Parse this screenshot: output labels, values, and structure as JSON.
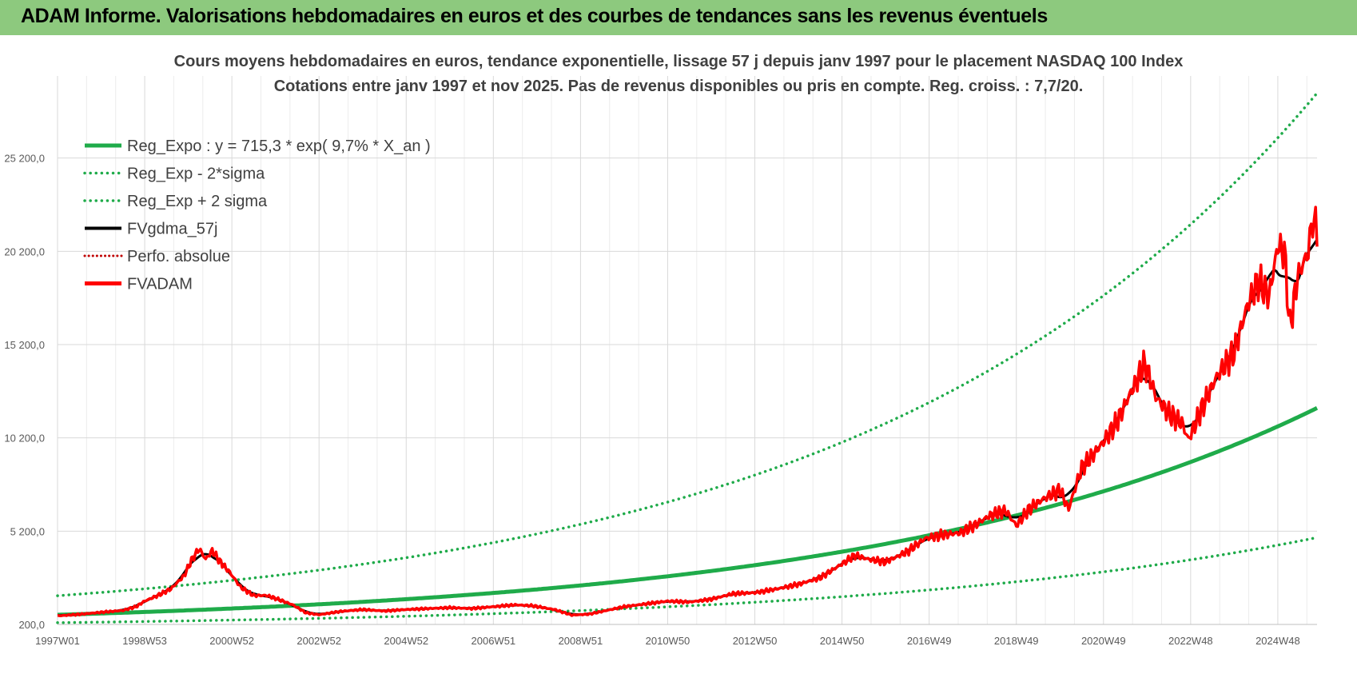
{
  "header": {
    "title": "ADAM Informe. Valorisations hebdomadaires en euros et des courbes de tendances sans les revenus éventuels",
    "background": "#8dc97e"
  },
  "chart_data": {
    "type": "line",
    "title_lines": [
      "Cours moyens hebdomadaires en euros, tendance exponentielle, lissage 57 j depuis janv 1997  pour le placement NASDAQ 100 Index",
      "Cotations entre janv 1997 et nov 2025. Pas de revenus disponibles ou pris en compte. Reg. croiss. : 7,7/20."
    ],
    "x_range": [
      1997.0,
      2025.9
    ],
    "x_ticks": [
      {
        "label": "1997W01",
        "year": 1997.0
      },
      {
        "label": "1998W53",
        "year": 1999.0
      },
      {
        "label": "2000W52",
        "year": 2001.0
      },
      {
        "label": "2002W52",
        "year": 2003.0
      },
      {
        "label": "2004W52",
        "year": 2005.0
      },
      {
        "label": "2006W51",
        "year": 2007.0
      },
      {
        "label": "2008W51",
        "year": 2009.0
      },
      {
        "label": "2010W50",
        "year": 2011.0
      },
      {
        "label": "2012W50",
        "year": 2013.0
      },
      {
        "label": "2014W50",
        "year": 2015.0
      },
      {
        "label": "2016W49",
        "year": 2017.0
      },
      {
        "label": "2018W49",
        "year": 2019.0
      },
      {
        "label": "2020W49",
        "year": 2021.0
      },
      {
        "label": "2022W48",
        "year": 2023.0
      },
      {
        "label": "2024W48",
        "year": 2025.0
      }
    ],
    "y_range": [
      200,
      29600
    ],
    "y_ticks": [
      {
        "label": "200,0",
        "value": 200
      },
      {
        "label": "5 200,0",
        "value": 5200
      },
      {
        "label": "10 200,0",
        "value": 10200
      },
      {
        "label": "15 200,0",
        "value": 15200
      },
      {
        "label": "20 200,0",
        "value": 20200
      },
      {
        "label": "25 200,0",
        "value": 25200
      }
    ],
    "grid": true,
    "legend_position": "top-left",
    "regression": {
      "a": 715.3,
      "rate": 0.097,
      "start_year": 1997.0,
      "end_year": 2025.9,
      "sigma_factor": 2.43,
      "clip_max": 29600
    },
    "series": [
      {
        "name": "Reg_Expo : y = 715,3 * exp( 9,7% *  X_an )",
        "color": "#1fab4a",
        "style": "solid-thick"
      },
      {
        "name": "Reg_Exp - 2*sigma",
        "color": "#1fab4a",
        "style": "dotted"
      },
      {
        "name": "Reg_Exp + 2 sigma",
        "color": "#1fab4a",
        "style": "dotted"
      },
      {
        "name": "FVgdma_57j",
        "color": "#000000",
        "style": "solid"
      },
      {
        "name": "Perfo. absolue",
        "color": "#c00000",
        "style": "dotted"
      },
      {
        "name": "FVADAM",
        "color": "#ff0000",
        "style": "solid-thick",
        "points": [
          [
            1997.0,
            660
          ],
          [
            1997.5,
            740
          ],
          [
            1998.0,
            850
          ],
          [
            1998.5,
            950
          ],
          [
            1998.8,
            1150
          ],
          [
            1999.0,
            1450
          ],
          [
            1999.3,
            1750
          ],
          [
            1999.6,
            2100
          ],
          [
            1999.9,
            2800
          ],
          [
            2000.1,
            3750
          ],
          [
            2000.25,
            4250
          ],
          [
            2000.4,
            3700
          ],
          [
            2000.55,
            4150
          ],
          [
            2000.75,
            3500
          ],
          [
            2000.95,
            3000
          ],
          [
            2001.2,
            2200
          ],
          [
            2001.5,
            1750
          ],
          [
            2001.8,
            1750
          ],
          [
            2002.0,
            1600
          ],
          [
            2002.4,
            1250
          ],
          [
            2002.7,
            820
          ],
          [
            2003.0,
            720
          ],
          [
            2003.5,
            900
          ],
          [
            2004.0,
            1000
          ],
          [
            2004.5,
            920
          ],
          [
            2005.0,
            1000
          ],
          [
            2005.5,
            1050
          ],
          [
            2006.0,
            1100
          ],
          [
            2006.5,
            1050
          ],
          [
            2007.0,
            1150
          ],
          [
            2007.5,
            1250
          ],
          [
            2007.9,
            1200
          ],
          [
            2008.4,
            1000
          ],
          [
            2008.8,
            700
          ],
          [
            2009.2,
            750
          ],
          [
            2009.6,
            950
          ],
          [
            2010.0,
            1150
          ],
          [
            2010.5,
            1300
          ],
          [
            2011.0,
            1450
          ],
          [
            2011.5,
            1400
          ],
          [
            2012.0,
            1550
          ],
          [
            2012.5,
            1850
          ],
          [
            2013.0,
            1900
          ],
          [
            2013.5,
            2100
          ],
          [
            2014.0,
            2350
          ],
          [
            2014.5,
            2700
          ],
          [
            2014.9,
            3300
          ],
          [
            2015.3,
            3900
          ],
          [
            2015.6,
            3700
          ],
          [
            2016.0,
            3550
          ],
          [
            2016.5,
            4100
          ],
          [
            2016.9,
            4800
          ],
          [
            2017.3,
            5000
          ],
          [
            2017.7,
            5100
          ],
          [
            2018.0,
            5450
          ],
          [
            2018.4,
            6050
          ],
          [
            2018.75,
            6300
          ],
          [
            2019.0,
            5500
          ],
          [
            2019.3,
            6400
          ],
          [
            2019.6,
            6900
          ],
          [
            2020.0,
            7400
          ],
          [
            2020.2,
            6400
          ],
          [
            2020.5,
            8600
          ],
          [
            2020.8,
            9400
          ],
          [
            2021.0,
            10000
          ],
          [
            2021.3,
            11000
          ],
          [
            2021.6,
            12500
          ],
          [
            2021.95,
            14200
          ],
          [
            2022.2,
            12400
          ],
          [
            2022.5,
            11500
          ],
          [
            2022.8,
            11000
          ],
          [
            2022.95,
            10100
          ],
          [
            2023.3,
            12000
          ],
          [
            2023.6,
            13500
          ],
          [
            2024.0,
            14800
          ],
          [
            2024.3,
            17300
          ],
          [
            2024.55,
            18600
          ],
          [
            2024.8,
            17800
          ],
          [
            2025.0,
            20500
          ],
          [
            2025.15,
            20200
          ],
          [
            2025.28,
            16100
          ],
          [
            2025.45,
            18800
          ],
          [
            2025.7,
            20200
          ],
          [
            2025.8,
            22000
          ],
          [
            2025.9,
            21200
          ]
        ]
      }
    ]
  }
}
